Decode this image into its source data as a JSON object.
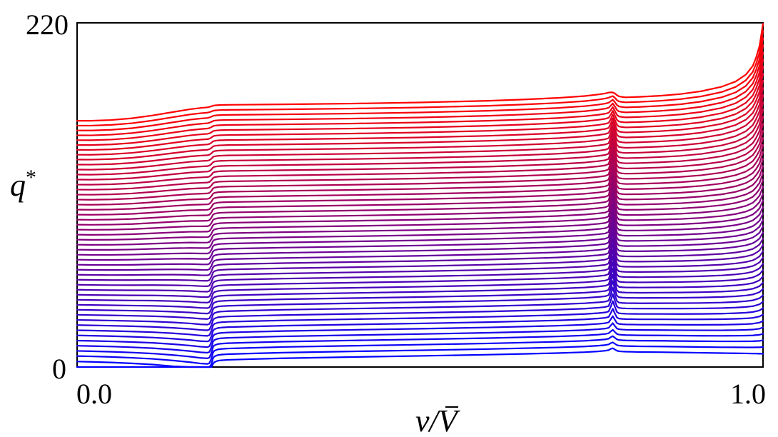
{
  "chart_data": {
    "type": "line",
    "title": "",
    "xlabel_main": "v/",
    "xlabel_var": "V",
    "ylabel_main": "q",
    "ylabel_sup": "*",
    "xlim": [
      0.0,
      1.0
    ],
    "ylim": [
      0,
      220
    ],
    "x_ticks": [
      "0.0",
      "1.0"
    ],
    "y_ticks": [
      "0",
      "220"
    ],
    "grid": false,
    "legend": "none",
    "color_start": "#0000ff",
    "color_end": "#ff0000",
    "curve_count": 50,
    "curve_shape": {
      "x": [
        0.0,
        0.02,
        0.05,
        0.08,
        0.11,
        0.14,
        0.165,
        0.18,
        0.19,
        0.193,
        0.196,
        0.198,
        0.2,
        0.205,
        0.21,
        0.22,
        0.25,
        0.3,
        0.4,
        0.5,
        0.6,
        0.65,
        0.7,
        0.74,
        0.76,
        0.77,
        0.775,
        0.778,
        0.781,
        0.784,
        0.787,
        0.79,
        0.795,
        0.8,
        0.82,
        0.85,
        0.88,
        0.91,
        0.94,
        0.96,
        0.975,
        0.985,
        0.99,
        0.995,
        1.0
      ],
      "left_low": [
        0.0,
        -0.2,
        -0.6,
        -1.2,
        -2.0,
        -3.2,
        -4.4,
        -5.3,
        -5.6,
        -5.1,
        -1.8,
        1.8,
        3.1,
        4.0,
        4.3,
        4.6,
        5.0,
        5.6,
        6.4,
        7.1,
        7.9,
        8.4,
        8.9,
        9.5,
        10.0,
        10.4,
        10.8,
        11.6,
        12.0,
        11.2,
        10.4,
        10.1,
        9.9,
        9.8,
        9.6,
        9.5,
        9.3,
        9.1,
        8.9,
        8.8,
        8.7,
        8.6,
        8.6,
        8.5,
        8.5
      ],
      "left_high": [
        0.0,
        0.0,
        0.5,
        1.6,
        3.4,
        5.6,
        7.4,
        8.2,
        8.6,
        8.9,
        9.3,
        9.6,
        9.8,
        10.0,
        10.1,
        10.2,
        10.3,
        10.5,
        11.0,
        11.7,
        12.8,
        13.6,
        14.6,
        15.8,
        16.8,
        17.5,
        18.0,
        18.2,
        18.1,
        17.5,
        16.4,
        15.6,
        15.2,
        15.0,
        15.3,
        16.0,
        17.0,
        18.6,
        21.0,
        23.5,
        26.5,
        30.0,
        33.5,
        38.0,
        48.0
      ],
      "spike_low": [
        0,
        0,
        0,
        0,
        0,
        0,
        0,
        0,
        0,
        0,
        0,
        0,
        0,
        0,
        0,
        0,
        0,
        0,
        0,
        0,
        0,
        0,
        0,
        0,
        0,
        0,
        0,
        0,
        0,
        0,
        0,
        0,
        0,
        0,
        0,
        0,
        0,
        0,
        0,
        0,
        0,
        0,
        0,
        0,
        0
      ],
      "spike_mid": [
        0,
        0,
        0,
        0,
        0,
        0,
        0,
        0,
        0,
        0,
        0,
        0,
        0,
        0,
        0,
        0,
        0,
        0,
        0,
        0,
        0,
        0,
        0,
        0,
        0,
        0,
        0.5,
        6.0,
        14.0,
        7.0,
        1.0,
        0,
        0,
        0,
        0,
        0,
        0,
        0,
        0,
        0,
        0,
        0,
        0,
        0,
        0
      ],
      "right_hook": [
        0,
        0,
        0,
        0,
        0,
        0,
        0,
        0,
        0,
        0,
        0,
        0,
        0,
        0,
        0,
        0,
        0,
        0,
        0,
        0,
        0,
        0,
        0,
        0,
        0,
        0,
        0,
        0,
        0,
        0,
        0,
        0,
        0,
        0,
        0,
        0,
        0.1,
        0.3,
        0.8,
        1.6,
        3.0,
        5.0,
        7.0,
        10.0,
        14.0
      ]
    },
    "offsets": [
      0.0,
      3.5,
      7.0,
      10.3,
      13.6,
      16.9,
      20.2,
      23.5,
      26.8,
      30.1,
      33.4,
      36.6,
      39.8,
      43.0,
      46.2,
      49.4,
      52.6,
      55.8,
      59.0,
      62.2,
      65.4,
      68.6,
      71.8,
      75.0,
      78.2,
      81.4,
      84.6,
      87.8,
      91.0,
      94.2,
      97.4,
      100.6,
      103.8,
      107.0,
      110.2,
      113.4,
      116.6,
      119.8,
      123.0,
      126.2,
      129.4,
      132.6,
      135.7,
      138.8,
      141.9,
      145.0,
      148.1,
      151.2,
      154.3,
      157.4
    ]
  }
}
